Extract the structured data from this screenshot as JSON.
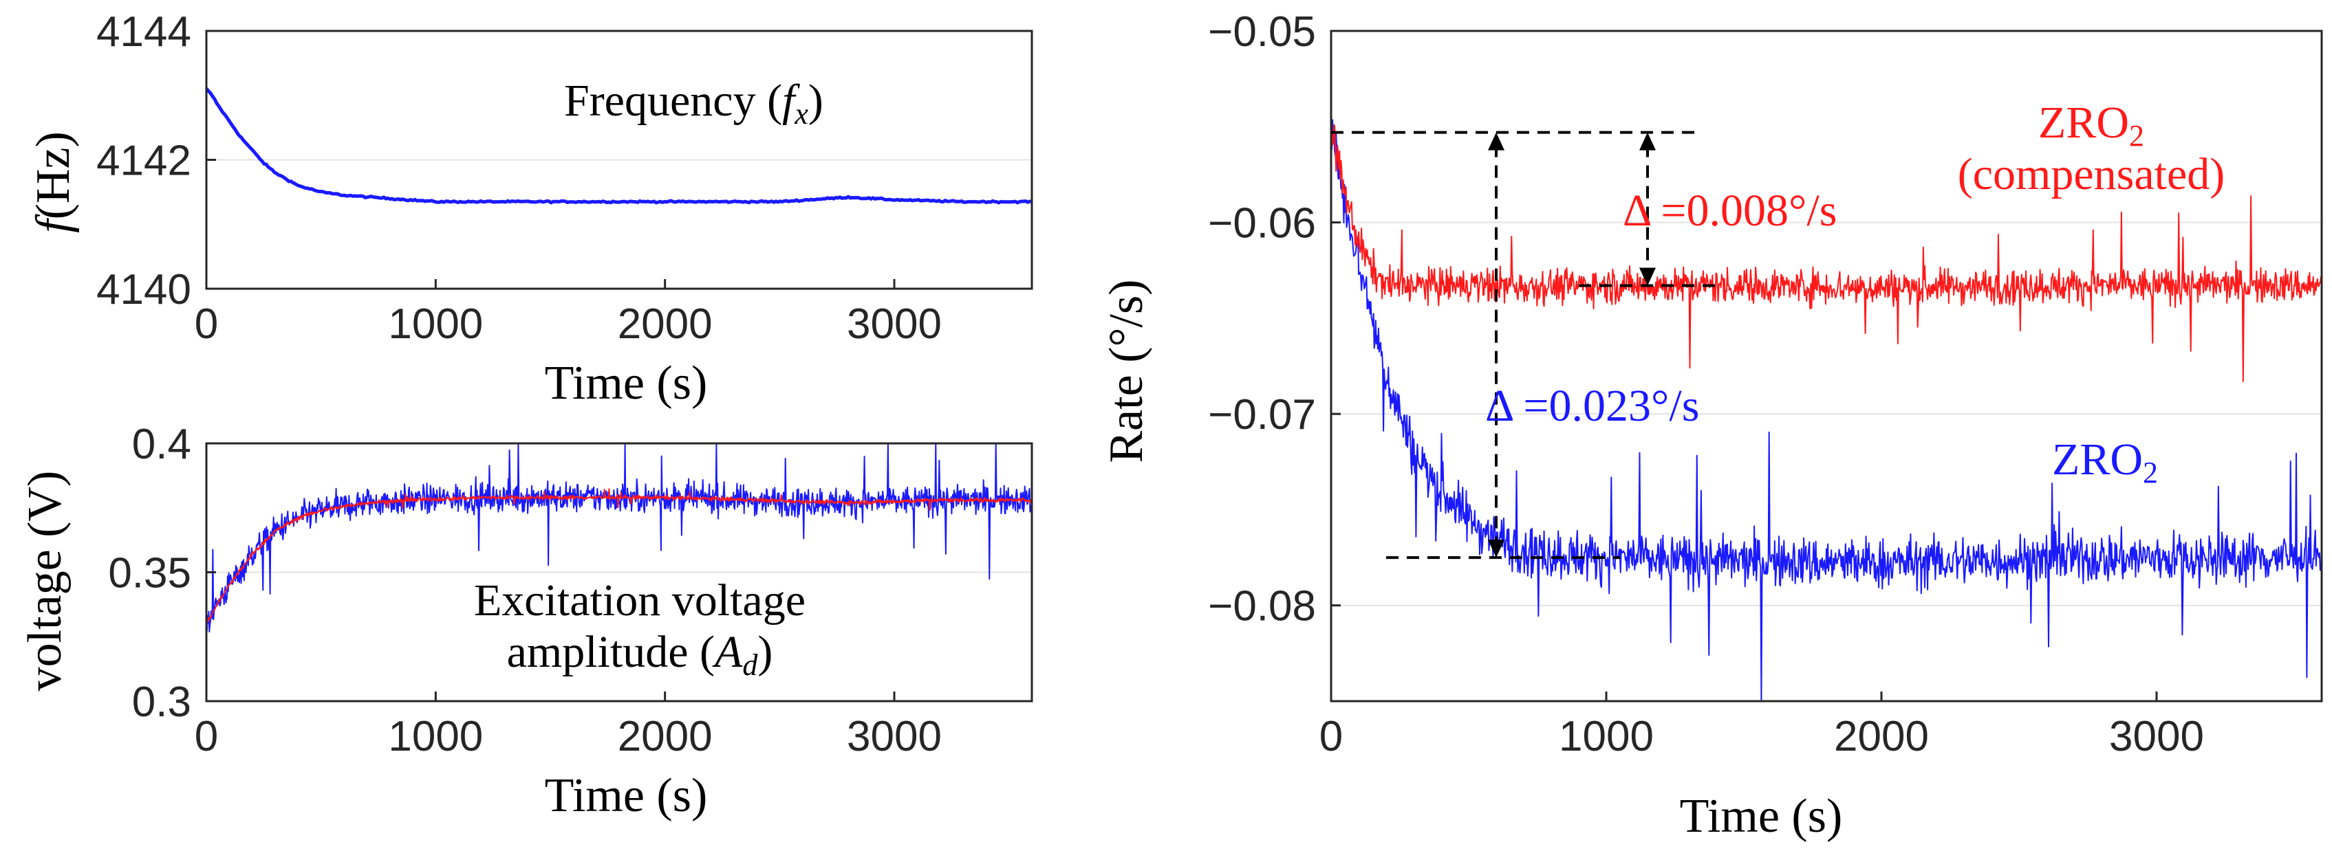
{
  "chart_data": [
    {
      "id": "frequency",
      "type": "line",
      "title": "Frequency (",
      "title_symbol": "f",
      "title_subscript": "x",
      "title_close": ")",
      "xlabel": "Time (s)",
      "ylabel_symbol": "f",
      "ylabel": "(Hz)",
      "xlim": [
        0,
        3600
      ],
      "ylim": [
        4140,
        4144
      ],
      "xticks": [
        0,
        1000,
        2000,
        3000
      ],
      "yticks": [
        4140,
        4142,
        4144
      ],
      "xtick_labels": [
        "0",
        "1000",
        "2000",
        "3000"
      ],
      "ytick_labels": [
        "4140",
        "4142",
        "4144"
      ],
      "grid": true,
      "series": [
        {
          "name": "f_x",
          "color": "#1a1aff",
          "x": [
            0,
            25,
            50,
            100,
            150,
            200,
            250,
            300,
            400,
            500,
            600,
            800,
            1000,
            1200,
            1500,
            2000,
            2500,
            2800,
            3000,
            3300,
            3600
          ],
          "y": [
            4143.1,
            4143.0,
            4142.85,
            4142.6,
            4142.35,
            4142.15,
            4141.95,
            4141.8,
            4141.6,
            4141.5,
            4141.45,
            4141.4,
            4141.35,
            4141.35,
            4141.35,
            4141.35,
            4141.35,
            4141.42,
            4141.38,
            4141.35,
            4141.35
          ]
        }
      ]
    },
    {
      "id": "excitation",
      "type": "line",
      "title_line1": "Excitation voltage",
      "title_line2": "amplitude (",
      "title_symbol": "A",
      "title_subscript": "d",
      "title_close": ")",
      "xlabel": "Time (s)",
      "ylabel": "voltage (V)",
      "xlim": [
        0,
        3600
      ],
      "ylim": [
        0.3,
        0.4
      ],
      "xticks": [
        0,
        1000,
        2000,
        3000
      ],
      "yticks": [
        0.3,
        0.35,
        0.4
      ],
      "xtick_labels": [
        "0",
        "1000",
        "2000",
        "3000"
      ],
      "ytick_labels": [
        "0.3",
        "0.35",
        "0.4"
      ],
      "grid": true,
      "series": [
        {
          "name": "raw",
          "color": "#1a1aff",
          "noise": 0.0055,
          "x": [
            0,
            50,
            100,
            200,
            300,
            400,
            500,
            700,
            900,
            1200,
            1600,
            2000,
            2400,
            2800,
            3200,
            3600
          ],
          "y": [
            0.33,
            0.338,
            0.345,
            0.357,
            0.366,
            0.371,
            0.374,
            0.377,
            0.378,
            0.379,
            0.379,
            0.379,
            0.378,
            0.377,
            0.378,
            0.378
          ]
        },
        {
          "name": "filtered",
          "color": "#ff1a1a",
          "noise": 0.0008,
          "x": [
            0,
            50,
            100,
            200,
            300,
            400,
            500,
            700,
            900,
            1200,
            1600,
            2000,
            2400,
            2800,
            3200,
            3600
          ],
          "y": [
            0.33,
            0.338,
            0.345,
            0.357,
            0.366,
            0.371,
            0.374,
            0.377,
            0.378,
            0.379,
            0.379,
            0.379,
            0.378,
            0.377,
            0.378,
            0.378
          ]
        }
      ]
    },
    {
      "id": "rate",
      "type": "line",
      "xlabel": "Time (s)",
      "ylabel": "Rate (°/s)",
      "xlim": [
        0,
        3600
      ],
      "ylim": [
        -0.085,
        -0.05
      ],
      "xticks": [
        0,
        1000,
        2000,
        3000
      ],
      "yticks": [
        -0.08,
        -0.07,
        -0.06,
        -0.05
      ],
      "xtick_labels": [
        "0",
        "1000",
        "2000",
        "3000"
      ],
      "ytick_labels": [
        "−0.08",
        "−0.07",
        "−0.06",
        "−0.05"
      ],
      "grid": true,
      "series": [
        {
          "name": "ZRO2",
          "label_main": "ZRO",
          "label_sub": "2",
          "color": "#1a1aff",
          "noise": 0.0013,
          "x": [
            0,
            50,
            100,
            150,
            200,
            250,
            300,
            400,
            500,
            600,
            700,
            800,
            1000,
            1200,
            1500,
            2000,
            2500,
            3000,
            3600
          ],
          "y": [
            -0.055,
            -0.059,
            -0.062,
            -0.065,
            -0.068,
            -0.07,
            -0.072,
            -0.074,
            -0.0755,
            -0.0765,
            -0.077,
            -0.0773,
            -0.0775,
            -0.0776,
            -0.0777,
            -0.0778,
            -0.0776,
            -0.0775,
            -0.0775
          ]
        },
        {
          "name": "ZRO2 (compensated)",
          "label_main": "ZRO",
          "label_sub": "2",
          "label_line2": "(compensated)",
          "color": "#ff1a1a",
          "noise": 0.0009,
          "x": [
            0,
            50,
            100,
            150,
            200,
            300,
            400,
            600,
            1000,
            1500,
            2000,
            2500,
            3000,
            3600
          ],
          "y": [
            -0.055,
            -0.0585,
            -0.061,
            -0.0625,
            -0.0632,
            -0.0633,
            -0.0633,
            -0.0633,
            -0.0633,
            -0.0633,
            -0.0634,
            -0.0633,
            -0.0633,
            -0.0633
          ]
        }
      ],
      "annotations": [
        {
          "name": "delta-red",
          "text_symbol": "Δ",
          "text_value": "=0.008°/s",
          "color": "#ff1a1a",
          "y_top": -0.0553,
          "y_bottom": -0.0633,
          "x_arrow": 1150,
          "x_text": 1060,
          "y_text": -0.0593
        },
        {
          "name": "delta-blue",
          "text_symbol": "Δ",
          "text_value": "=0.023°/s",
          "color": "#1a1aff",
          "y_top": -0.0553,
          "y_bottom": -0.0775,
          "x_arrow": 600,
          "x_text": 560,
          "y_text": -0.0695
        }
      ]
    }
  ]
}
